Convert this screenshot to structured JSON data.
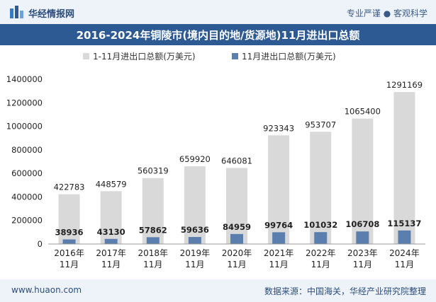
{
  "header": {
    "brand": "华经情报网",
    "tagline": "专业严谨 ● 客观科学"
  },
  "footer": {
    "url": "www.huaon.com",
    "source": "数据来源：中国海关，华经产业研究院整理"
  },
  "colors": {
    "total": "#d9d9d9",
    "nov": "#5a7fae",
    "title_bg": "#2d5a93",
    "bar_bg": "#eef3f9"
  },
  "chart_data": {
    "type": "bar",
    "title": "2016-2024年铜陵市(境内目的地/货源地)11月进出口总额",
    "categories": [
      "2016年\n11月",
      "2017年\n11月",
      "2018年\n11月",
      "2019年\n11月",
      "2020年\n11月",
      "2021年\n11月",
      "2022年\n11月",
      "2023年\n11月",
      "2024年\n11月"
    ],
    "series": [
      {
        "name": "1-11月进出口总额(万美元)",
        "values": [
          422783,
          448579,
          560319,
          659920,
          646081,
          923343,
          953707,
          1065400,
          1291169
        ]
      },
      {
        "name": "11月进出口总额(万美元)",
        "values": [
          38936,
          43130,
          57862,
          59636,
          84959,
          99764,
          101032,
          106708,
          115137
        ]
      }
    ],
    "ylim": [
      0,
      1400000
    ],
    "yticks": [
      "0",
      "200000",
      "400000",
      "600000",
      "800000",
      "1000000",
      "1200000",
      "1400000"
    ],
    "legend_position": "top-center",
    "grid": false
  }
}
